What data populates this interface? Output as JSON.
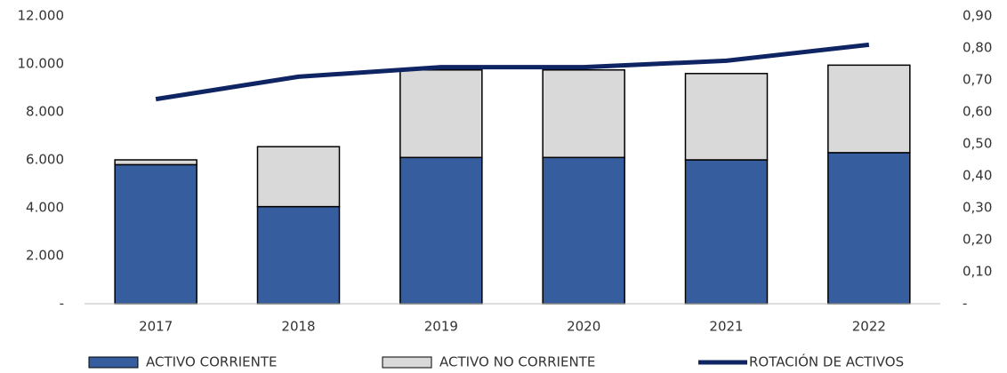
{
  "chart_data": {
    "type": "bar",
    "stacked": true,
    "categories": [
      "2017",
      "2018",
      "2019",
      "2020",
      "2021",
      "2022"
    ],
    "series": [
      {
        "name": "ACTIVO CORRIENTE",
        "color": "#365e9f",
        "values": [
          5800,
          4050,
          6100,
          6100,
          6000,
          6300
        ]
      },
      {
        "name": "ACTIVO NO CORRIENTE",
        "color": "#d9d9d9",
        "values": [
          200,
          2500,
          3650,
          3650,
          3600,
          3650
        ]
      },
      {
        "name": "ROTACIÓN DE ACTIVOS",
        "color": "#0f2463",
        "type": "line",
        "axis": "y2",
        "values": [
          0.64,
          0.71,
          0.74,
          0.74,
          0.76,
          0.81
        ]
      }
    ],
    "ylim": [
      0,
      12000
    ],
    "yticks": [
      {
        "value": 0,
        "label": "-"
      },
      {
        "value": 2000,
        "label": "2.000"
      },
      {
        "value": 4000,
        "label": "4.000"
      },
      {
        "value": 6000,
        "label": "6.000"
      },
      {
        "value": 8000,
        "label": "8.000"
      },
      {
        "value": 10000,
        "label": "10.000"
      },
      {
        "value": 12000,
        "label": "12.000"
      }
    ],
    "y2lim": [
      0,
      0.9
    ],
    "y2ticks": [
      {
        "value": 0,
        "label": "-"
      },
      {
        "value": 0.1,
        "label": "0,10"
      },
      {
        "value": 0.2,
        "label": "0,20"
      },
      {
        "value": 0.3,
        "label": "0,30"
      },
      {
        "value": 0.4,
        "label": "0,40"
      },
      {
        "value": 0.5,
        "label": "0,50"
      },
      {
        "value": 0.6,
        "label": "0,60"
      },
      {
        "value": 0.7,
        "label": "0,70"
      },
      {
        "value": 0.8,
        "label": "0,80"
      },
      {
        "value": 0.9,
        "label": "0,90"
      }
    ],
    "legend": "bottom",
    "grid": false
  }
}
